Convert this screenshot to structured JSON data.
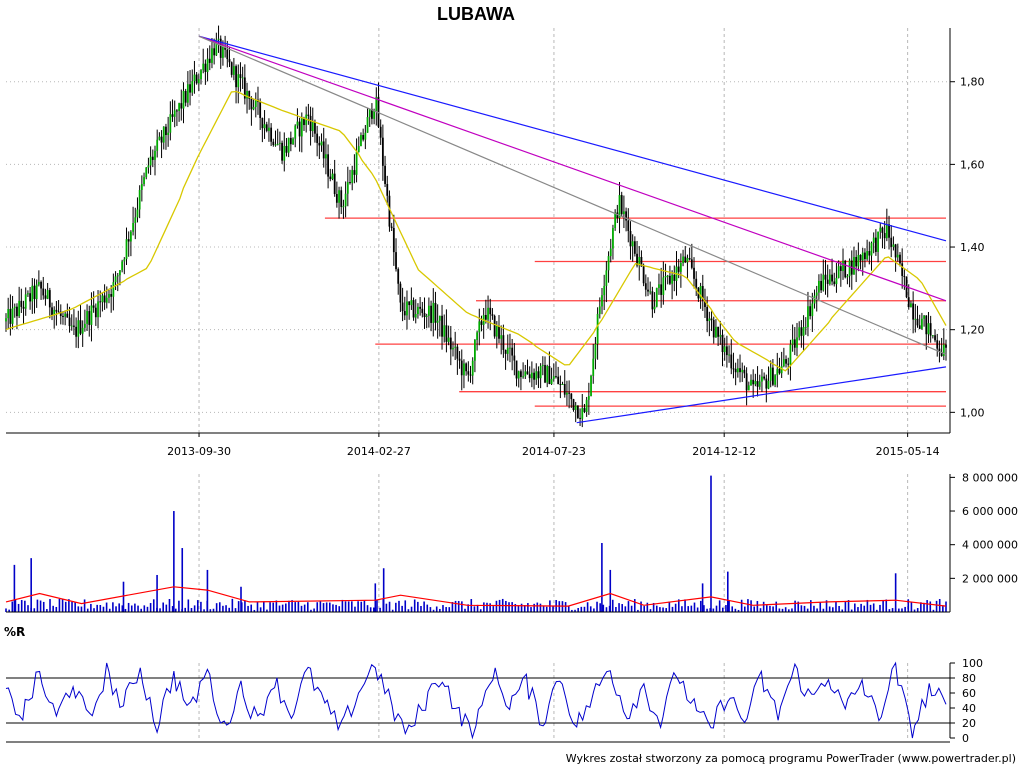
{
  "chart_data": [
    {
      "type": "candlestick",
      "title": "LUBAWA",
      "x_ticks": [
        "2013-09-30",
        "2014-02-27",
        "2014-07-23",
        "2014-12-12",
        "2015-05-14"
      ],
      "y_ticks": [
        "1,80",
        "1,60",
        "1,40",
        "1,20",
        "1,00"
      ],
      "y_tick_values": [
        1.8,
        1.6,
        1.4,
        1.2,
        1.0
      ],
      "ylim": [
        0.95,
        1.93
      ],
      "x_range": [
        "2013-04-22",
        "2015-06-15"
      ],
      "grid": "vertical dashed at x ticks, horizontal dotted at y ticks",
      "price_path": [
        {
          "x": "2013-04-22",
          "y": 1.22
        },
        {
          "x": "2013-05-20",
          "y": 1.3
        },
        {
          "x": "2013-06-17",
          "y": 1.19
        },
        {
          "x": "2013-07-22",
          "y": 1.31
        },
        {
          "x": "2013-08-19",
          "y": 1.6
        },
        {
          "x": "2013-09-16",
          "y": 1.75
        },
        {
          "x": "2013-10-14",
          "y": 1.89
        },
        {
          "x": "2013-11-11",
          "y": 1.76
        },
        {
          "x": "2013-12-09",
          "y": 1.63
        },
        {
          "x": "2013-12-30",
          "y": 1.72
        },
        {
          "x": "2014-01-27",
          "y": 1.5
        },
        {
          "x": "2014-02-24",
          "y": 1.76
        },
        {
          "x": "2014-03-17",
          "y": 1.25
        },
        {
          "x": "2014-04-14",
          "y": 1.24
        },
        {
          "x": "2014-05-12",
          "y": 1.08
        },
        {
          "x": "2014-05-26",
          "y": 1.25
        },
        {
          "x": "2014-06-23",
          "y": 1.1
        },
        {
          "x": "2014-07-21",
          "y": 1.09
        },
        {
          "x": "2014-08-18",
          "y": 0.99
        },
        {
          "x": "2014-09-01",
          "y": 1.3
        },
        {
          "x": "2014-09-15",
          "y": 1.51
        },
        {
          "x": "2014-10-13",
          "y": 1.27
        },
        {
          "x": "2014-11-10",
          "y": 1.37
        },
        {
          "x": "2014-12-08",
          "y": 1.17
        },
        {
          "x": "2015-01-05",
          "y": 1.05
        },
        {
          "x": "2015-02-02",
          "y": 1.12
        },
        {
          "x": "2015-03-02",
          "y": 1.31
        },
        {
          "x": "2015-03-30",
          "y": 1.36
        },
        {
          "x": "2015-04-27",
          "y": 1.44
        },
        {
          "x": "2015-05-18",
          "y": 1.25
        },
        {
          "x": "2015-06-15",
          "y": 1.14
        }
      ],
      "moving_average": [
        {
          "x": "2013-04-22",
          "y": 1.2
        },
        {
          "x": "2013-06-17",
          "y": 1.25
        },
        {
          "x": "2013-08-19",
          "y": 1.35
        },
        {
          "x": "2013-09-30",
          "y": 1.62
        },
        {
          "x": "2013-10-28",
          "y": 1.78
        },
        {
          "x": "2013-12-09",
          "y": 1.73
        },
        {
          "x": "2014-01-27",
          "y": 1.68
        },
        {
          "x": "2014-02-24",
          "y": 1.57
        },
        {
          "x": "2014-03-31",
          "y": 1.35
        },
        {
          "x": "2014-05-12",
          "y": 1.24
        },
        {
          "x": "2014-06-23",
          "y": 1.19
        },
        {
          "x": "2014-08-04",
          "y": 1.11
        },
        {
          "x": "2014-09-01",
          "y": 1.22
        },
        {
          "x": "2014-09-29",
          "y": 1.36
        },
        {
          "x": "2014-11-10",
          "y": 1.33
        },
        {
          "x": "2014-12-22",
          "y": 1.17
        },
        {
          "x": "2015-02-02",
          "y": 1.1
        },
        {
          "x": "2015-03-16",
          "y": 1.24
        },
        {
          "x": "2015-04-27",
          "y": 1.38
        },
        {
          "x": "2015-05-25",
          "y": 1.32
        },
        {
          "x": "2015-06-15",
          "y": 1.21
        }
      ],
      "support_resistance_levels": [
        {
          "y": 1.47,
          "from": "2014-01-13",
          "to": "2015-06-15"
        },
        {
          "y": 1.365,
          "from": "2014-07-07",
          "to": "2015-06-15"
        },
        {
          "y": 1.27,
          "from": "2014-05-19",
          "to": "2015-06-15"
        },
        {
          "y": 1.165,
          "from": "2014-02-24",
          "to": "2015-06-15"
        },
        {
          "y": 1.05,
          "from": "2014-05-05",
          "to": "2015-06-15"
        },
        {
          "y": 1.015,
          "from": "2014-07-07",
          "to": "2015-06-15"
        }
      ],
      "trend_lines": [
        {
          "name": "blue-top",
          "color": "#1a1aff",
          "from": {
            "x": "2013-09-30",
            "y": 1.91
          },
          "to": {
            "x": "2015-06-15",
            "y": 1.415
          }
        },
        {
          "name": "magenta",
          "color": "#c000c0",
          "from": {
            "x": "2013-09-30",
            "y": 1.91
          },
          "to": {
            "x": "2015-06-15",
            "y": 1.27
          }
        },
        {
          "name": "gray",
          "color": "#888888",
          "from": {
            "x": "2013-09-30",
            "y": 1.91
          },
          "to": {
            "x": "2015-06-15",
            "y": 1.14
          }
        },
        {
          "name": "blue-bottom",
          "color": "#1a1aff",
          "from": {
            "x": "2014-08-11",
            "y": 0.975
          },
          "to": {
            "x": "2015-06-15",
            "y": 1.11
          }
        }
      ],
      "colors": {
        "candles": "#000000",
        "up_body": "#00aa00",
        "moving_average": "#d8c800",
        "levels": "#ff4040",
        "axis": "#000000"
      }
    },
    {
      "type": "bar",
      "title": "",
      "y_ticks": [
        "8 000 000",
        "6 000 000",
        "4 000 000",
        "2 000 000"
      ],
      "y_tick_values": [
        8000000,
        6000000,
        4000000,
        2000000
      ],
      "ylim": [
        0,
        8200000
      ],
      "baseline_volume": 300000,
      "volume_spikes": [
        {
          "x": "2013-04-29",
          "y": 2800000
        },
        {
          "x": "2013-05-13",
          "y": 3200000
        },
        {
          "x": "2013-07-29",
          "y": 1800000
        },
        {
          "x": "2013-08-26",
          "y": 2200000
        },
        {
          "x": "2013-09-09",
          "y": 6000000
        },
        {
          "x": "2013-09-16",
          "y": 3800000
        },
        {
          "x": "2013-10-07",
          "y": 2500000
        },
        {
          "x": "2013-11-04",
          "y": 1500000
        },
        {
          "x": "2014-02-24",
          "y": 1700000
        },
        {
          "x": "2014-03-03",
          "y": 2600000
        },
        {
          "x": "2014-09-01",
          "y": 4100000
        },
        {
          "x": "2014-09-08",
          "y": 2500000
        },
        {
          "x": "2014-11-24",
          "y": 1700000
        },
        {
          "x": "2014-12-01",
          "y": 8100000
        },
        {
          "x": "2014-12-15",
          "y": 2400000
        },
        {
          "x": "2015-05-04",
          "y": 2300000
        }
      ],
      "moving_average_path": [
        {
          "x": "2013-04-22",
          "y": 600000
        },
        {
          "x": "2013-05-20",
          "y": 1100000
        },
        {
          "x": "2013-06-24",
          "y": 500000
        },
        {
          "x": "2013-09-09",
          "y": 1500000
        },
        {
          "x": "2013-10-07",
          "y": 1300000
        },
        {
          "x": "2013-11-11",
          "y": 600000
        },
        {
          "x": "2014-02-24",
          "y": 700000
        },
        {
          "x": "2014-03-17",
          "y": 1000000
        },
        {
          "x": "2014-05-12",
          "y": 400000
        },
        {
          "x": "2014-08-04",
          "y": 350000
        },
        {
          "x": "2014-09-08",
          "y": 1100000
        },
        {
          "x": "2014-10-06",
          "y": 400000
        },
        {
          "x": "2014-12-01",
          "y": 900000
        },
        {
          "x": "2015-01-05",
          "y": 400000
        },
        {
          "x": "2015-03-09",
          "y": 600000
        },
        {
          "x": "2015-05-04",
          "y": 700000
        },
        {
          "x": "2015-06-15",
          "y": 350000
        }
      ],
      "colors": {
        "bars": "#0000c8",
        "moving_average": "#ff0000"
      }
    },
    {
      "type": "line",
      "title": "%R",
      "y_ticks": [
        "100",
        "80",
        "60",
        "40",
        "20",
        "0"
      ],
      "y_tick_values": [
        100,
        80,
        60,
        40,
        20,
        0
      ],
      "ylim": [
        0,
        100
      ],
      "reference_lines": [
        80,
        20
      ],
      "series": [
        {
          "color": "#0000cc",
          "points": [
            {
              "x": "2013-04-22",
              "y": 60
            },
            {
              "x": "2013-05-06",
              "y": 30
            },
            {
              "x": "2013-05-20",
              "y": 85
            },
            {
              "x": "2013-06-03",
              "y": 25
            },
            {
              "x": "2013-06-17",
              "y": 75
            },
            {
              "x": "2013-07-01",
              "y": 20
            },
            {
              "x": "2013-07-15",
              "y": 90
            },
            {
              "x": "2013-07-29",
              "y": 40
            },
            {
              "x": "2013-08-12",
              "y": 95
            },
            {
              "x": "2013-08-26",
              "y": 15
            },
            {
              "x": "2013-09-09",
              "y": 85
            },
            {
              "x": "2013-09-23",
              "y": 35
            },
            {
              "x": "2013-10-07",
              "y": 92
            },
            {
              "x": "2013-10-21",
              "y": 10
            },
            {
              "x": "2013-11-04",
              "y": 70
            },
            {
              "x": "2013-11-18",
              "y": 20
            },
            {
              "x": "2013-12-02",
              "y": 80
            },
            {
              "x": "2013-12-16",
              "y": 30
            },
            {
              "x": "2013-12-30",
              "y": 90
            },
            {
              "x": "2014-01-13",
              "y": 45
            },
            {
              "x": "2014-01-27",
              "y": 10
            },
            {
              "x": "2014-02-10",
              "y": 60
            },
            {
              "x": "2014-02-24",
              "y": 100
            },
            {
              "x": "2014-03-10",
              "y": 40
            },
            {
              "x": "2014-03-24",
              "y": 5
            },
            {
              "x": "2014-04-07",
              "y": 50
            },
            {
              "x": "2014-04-21",
              "y": 85
            },
            {
              "x": "2014-05-05",
              "y": 30
            },
            {
              "x": "2014-05-19",
              "y": 10
            },
            {
              "x": "2014-06-02",
              "y": 90
            },
            {
              "x": "2014-06-16",
              "y": 45
            },
            {
              "x": "2014-06-30",
              "y": 75
            },
            {
              "x": "2014-07-14",
              "y": 20
            },
            {
              "x": "2014-07-28",
              "y": 85
            },
            {
              "x": "2014-08-11",
              "y": 15
            },
            {
              "x": "2014-08-25",
              "y": 55
            },
            {
              "x": "2014-09-08",
              "y": 95
            },
            {
              "x": "2014-09-22",
              "y": 30
            },
            {
              "x": "2014-10-06",
              "y": 70
            },
            {
              "x": "2014-10-20",
              "y": 20
            },
            {
              "x": "2014-11-03",
              "y": 88
            },
            {
              "x": "2014-11-17",
              "y": 40
            },
            {
              "x": "2014-12-01",
              "y": 10
            },
            {
              "x": "2014-12-15",
              "y": 60
            },
            {
              "x": "2014-12-29",
              "y": 20
            },
            {
              "x": "2015-01-12",
              "y": 80
            },
            {
              "x": "2015-01-26",
              "y": 30
            },
            {
              "x": "2015-02-09",
              "y": 92
            },
            {
              "x": "2015-02-23",
              "y": 50
            },
            {
              "x": "2015-03-09",
              "y": 85
            },
            {
              "x": "2015-03-23",
              "y": 35
            },
            {
              "x": "2015-04-06",
              "y": 75
            },
            {
              "x": "2015-04-20",
              "y": 25
            },
            {
              "x": "2015-05-04",
              "y": 95
            },
            {
              "x": "2015-05-18",
              "y": 5
            },
            {
              "x": "2015-06-01",
              "y": 65
            },
            {
              "x": "2015-06-15",
              "y": 45
            }
          ]
        }
      ]
    }
  ],
  "footer": "Wykres został stworzony za pomocą programu PowerTrader (www.powertrader.pl)"
}
